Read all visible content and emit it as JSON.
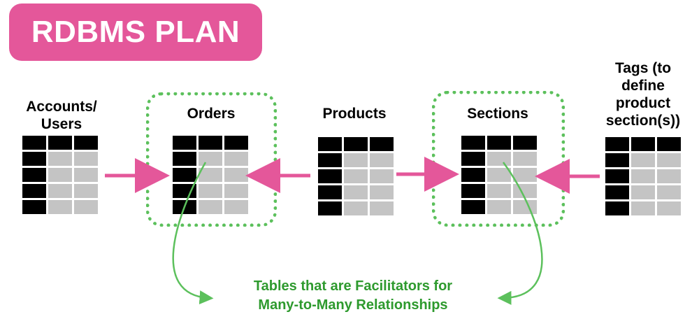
{
  "title": "RDBMS PLAN",
  "entities": [
    {
      "id": "accounts",
      "label": "Accounts/\nUsers"
    },
    {
      "id": "orders",
      "label": "Orders"
    },
    {
      "id": "products",
      "label": "Products"
    },
    {
      "id": "sections",
      "label": "Sections"
    },
    {
      "id": "tags",
      "label": "Tags (to\ndefine\nproduct\nsection(s))"
    }
  ],
  "note": "Tables that are Facilitators for\nMany-to-Many Relationships",
  "colors": {
    "title_bg": "#e4579a",
    "arrow": "#e4579a",
    "dashed_box": "#5cc05c",
    "note_text": "#2e9a2e",
    "cell_dark": "#000000",
    "cell_light": "#c4c4c4"
  }
}
